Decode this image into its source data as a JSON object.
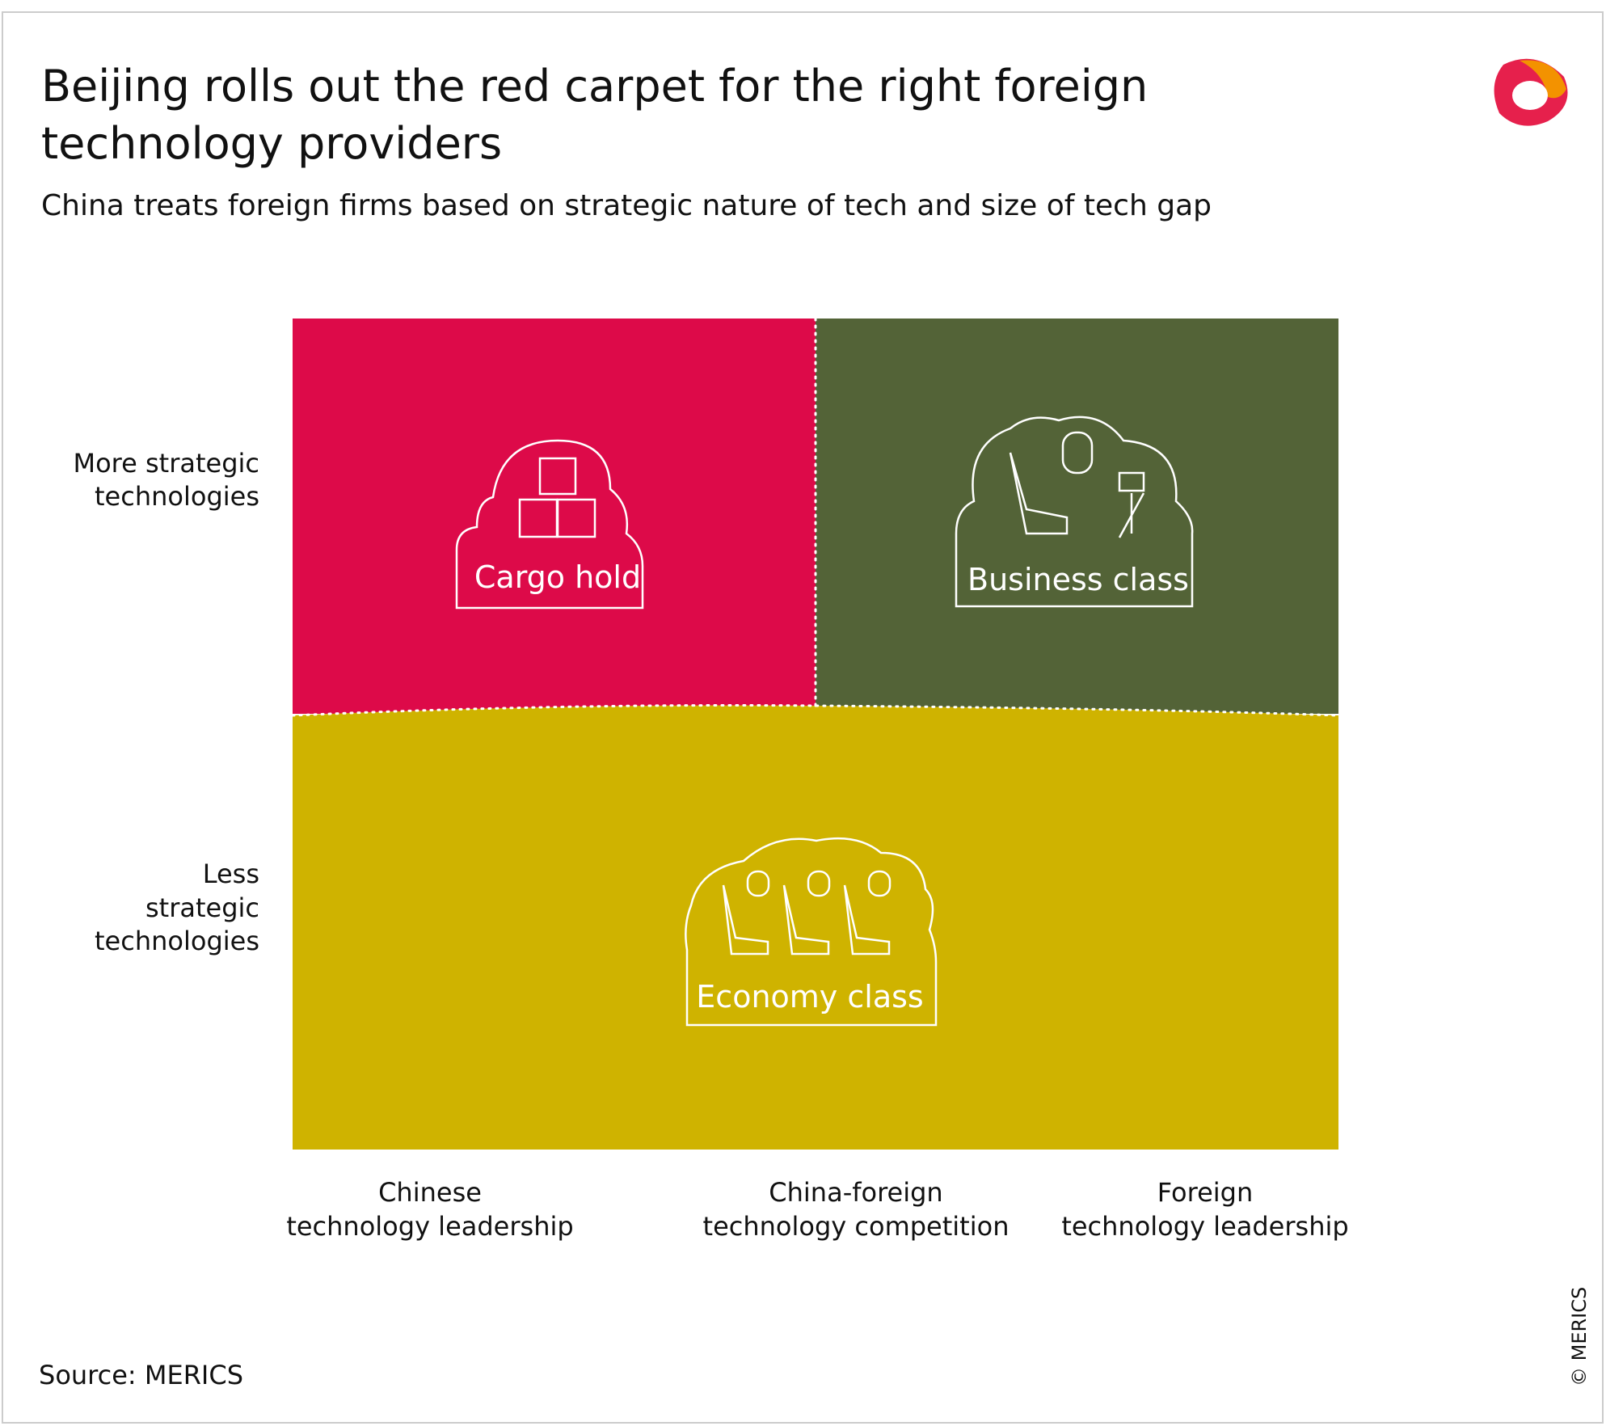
{
  "header": {
    "title": [
      "Beijing rolls out the red carpet for the right foreign",
      "technology providers"
    ],
    "subtitle": "China treats foreign firms based on strategic nature of tech and size of tech gap"
  },
  "y_axis": {
    "labels": [
      [
        "More strategic",
        "technologies"
      ],
      [
        "Less",
        "strategic",
        "technologies"
      ]
    ]
  },
  "x_axis": {
    "labels": [
      [
        "Chinese",
        "technology leadership"
      ],
      [
        "China-foreign",
        "technology competition"
      ],
      [
        "Foreign",
        "technology leadership"
      ]
    ]
  },
  "quadrants": [
    {
      "label": "Cargo hold"
    },
    {
      "label": "Business class"
    },
    {
      "label": "Economy class"
    }
  ],
  "footer": {
    "source": "Source: MERICS",
    "copyright": "© MERICS"
  }
}
